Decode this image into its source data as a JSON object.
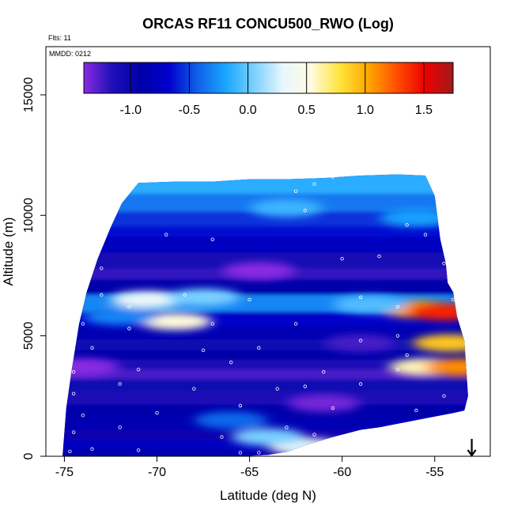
{
  "chart_data": {
    "type": "heatmap",
    "title": "ORCAS RF11 CONCU500_RWO (Log)",
    "notes": {
      "flights": "Flts: 11",
      "date": "MMDD: 0212"
    },
    "xlabel": "Latitude (deg N)",
    "ylabel": "Altitude (m)",
    "xlim": [
      -76,
      -52
    ],
    "ylim": [
      0,
      17000
    ],
    "x_ticks": [
      -75,
      -70,
      -65,
      -60,
      -55
    ],
    "x_tick_labels": [
      "-75",
      "-70",
      "-65",
      "-60",
      "-55"
    ],
    "y_ticks": [
      0,
      5000,
      10000,
      15000
    ],
    "y_tick_labels": [
      "0",
      "5000",
      "10000",
      "15000"
    ],
    "colorbar": {
      "range": [
        -1.4,
        1.75
      ],
      "ticks": [
        -1.0,
        -0.5,
        0.0,
        0.5,
        1.0,
        1.5
      ],
      "tick_labels": [
        "-1.0",
        "-0.5",
        "0.0",
        "0.5",
        "1.0",
        "1.5"
      ],
      "palette": [
        "#8a2be2",
        "#1e10b8",
        "#0000a8",
        "#0000cd",
        "#1060e8",
        "#19a6ff",
        "#7cd0ff",
        "#e8f6ff",
        "#fffbe0",
        "#ffe43c",
        "#ffa800",
        "#ff5000",
        "#ee0000",
        "#a01a1a"
      ]
    },
    "domain_outline": {
      "lat": [
        -75.1,
        -74.9,
        -74.6,
        -74.2,
        -73.8,
        -73.2,
        -72.5,
        -71.9,
        -71.0,
        -69.0,
        -67.0,
        -65.0,
        -63.0,
        -61.0,
        -59.0,
        -57.0,
        -55.5,
        -55.0,
        -54.7,
        -54.4,
        -54.3,
        -54.0,
        -53.8,
        -53.4,
        -53.2,
        -53.4,
        -54.0,
        -56.0,
        -58.0,
        -59.0,
        -60.5,
        -62.0,
        -63.0,
        -64.0,
        -65.5,
        -67.0,
        -69.0,
        -71.0,
        -73.0,
        -74.5
      ],
      "alt": [
        0,
        2000,
        3600,
        5500,
        6800,
        8200,
        9500,
        10500,
        11350,
        11400,
        11400,
        11500,
        11500,
        11550,
        11650,
        11700,
        11650,
        10800,
        9000,
        8000,
        7200,
        6800,
        5800,
        4800,
        2500,
        1900,
        1800,
        1500,
        1200,
        1100,
        800,
        450,
        180,
        60,
        0,
        0,
        0,
        0,
        0,
        0
      ]
    },
    "layers": [
      {
        "alt": 11300,
        "value": -0.15
      },
      {
        "alt": 10500,
        "value": -0.35
      },
      {
        "alt": 9800,
        "value": -0.55
      },
      {
        "alt": 9300,
        "value": -0.65
      },
      {
        "alt": 8900,
        "value": -0.75
      },
      {
        "alt": 8000,
        "value": -1.1
      },
      {
        "alt": 7600,
        "value": -1.2
      },
      {
        "alt": 7100,
        "value": -0.95
      },
      {
        "alt": 6300,
        "value": -0.3
      },
      {
        "alt": 5700,
        "value": -0.7
      },
      {
        "alt": 5100,
        "value": -0.85
      },
      {
        "alt": 4600,
        "value": -1.05
      },
      {
        "alt": 4200,
        "value": -0.95
      },
      {
        "alt": 3800,
        "value": -1.15
      },
      {
        "alt": 3400,
        "value": -1.25
      },
      {
        "alt": 3000,
        "value": -1.05
      },
      {
        "alt": 2400,
        "value": -1.15
      },
      {
        "alt": 1900,
        "value": -0.9
      },
      {
        "alt": 1300,
        "value": -0.85
      },
      {
        "alt": 900,
        "value": -1.0
      },
      {
        "alt": 400,
        "value": -0.75
      },
      {
        "alt": 100,
        "value": -0.95
      }
    ],
    "features": [
      {
        "lat": -70.5,
        "alt": 6500,
        "value": 0.35
      },
      {
        "lat": -69.0,
        "alt": 5600,
        "value": 0.55
      },
      {
        "lat": -67.5,
        "alt": 6600,
        "value": 0.05
      },
      {
        "lat": -56.0,
        "alt": 6100,
        "value": 1.05
      },
      {
        "lat": -54.5,
        "alt": 6000,
        "value": 1.4
      },
      {
        "lat": -58.5,
        "alt": 6300,
        "value": -0.05
      },
      {
        "lat": -54.2,
        "alt": 4700,
        "value": 0.9
      },
      {
        "lat": -55.5,
        "alt": 3700,
        "value": 0.6
      },
      {
        "lat": -53.6,
        "alt": 3700,
        "value": 1.1
      },
      {
        "lat": -74.0,
        "alt": 3700,
        "value": -1.4
      },
      {
        "lat": -61.0,
        "alt": 2200,
        "value": -1.35
      },
      {
        "lat": -64.5,
        "alt": 7700,
        "value": -1.4
      },
      {
        "lat": -62.0,
        "alt": 400,
        "value": 0.45
      },
      {
        "lat": -61.0,
        "alt": 200,
        "value": 0.25
      },
      {
        "lat": -64.0,
        "alt": 800,
        "value": 0.05
      },
      {
        "lat": -66.0,
        "alt": 1500,
        "value": -0.4
      },
      {
        "lat": -72.0,
        "alt": 5800,
        "value": -0.3
      },
      {
        "lat": -63.0,
        "alt": 10300,
        "value": -0.1
      },
      {
        "lat": -56.0,
        "alt": 9900,
        "value": -0.2
      },
      {
        "lat": -59.0,
        "alt": 4700,
        "value": -1.25
      }
    ],
    "sample_points": [
      {
        "lat": -72.0,
        "alt": 11950
      },
      {
        "lat": -71.0,
        "alt": 11950
      },
      {
        "lat": -70.0,
        "alt": 11950
      },
      {
        "lat": -69.0,
        "alt": 11950
      },
      {
        "lat": -68.0,
        "alt": 11950
      },
      {
        "lat": -63.0,
        "alt": 11950
      },
      {
        "lat": -62.0,
        "alt": 11950
      },
      {
        "lat": -61.0,
        "alt": 11900
      },
      {
        "lat": -59.0,
        "alt": 11950
      },
      {
        "lat": -58.5,
        "alt": 11950
      },
      {
        "lat": -58.0,
        "alt": 11900
      },
      {
        "lat": -57.5,
        "alt": 11950
      },
      {
        "lat": -57.0,
        "alt": 11950
      },
      {
        "lat": -56.5,
        "alt": 11950
      },
      {
        "lat": -56.0,
        "alt": 11950
      },
      {
        "lat": -55.5,
        "alt": 11950
      },
      {
        "lat": -55.0,
        "alt": 11950
      },
      {
        "lat": -60.5,
        "alt": 11600
      },
      {
        "lat": -61.5,
        "alt": 11300
      },
      {
        "lat": -62.5,
        "alt": 11000
      },
      {
        "lat": -62.0,
        "alt": 10200
      },
      {
        "lat": -56.5,
        "alt": 9600
      },
      {
        "lat": -55.5,
        "alt": 9200
      },
      {
        "lat": -67.0,
        "alt": 9000
      },
      {
        "lat": -69.5,
        "alt": 9200
      },
      {
        "lat": -73.5,
        "alt": 9200
      },
      {
        "lat": -74.0,
        "alt": 8100
      },
      {
        "lat": -73.0,
        "alt": 7800
      },
      {
        "lat": -60.0,
        "alt": 8200
      },
      {
        "lat": -58.0,
        "alt": 8300
      },
      {
        "lat": -54.5,
        "alt": 8000
      },
      {
        "lat": -73.0,
        "alt": 6700
      },
      {
        "lat": -71.5,
        "alt": 6200
      },
      {
        "lat": -68.5,
        "alt": 6700
      },
      {
        "lat": -65.0,
        "alt": 6500
      },
      {
        "lat": -59.0,
        "alt": 6600
      },
      {
        "lat": -57.0,
        "alt": 6200
      },
      {
        "lat": -54.0,
        "alt": 6500
      },
      {
        "lat": -74.0,
        "alt": 5500
      },
      {
        "lat": -71.5,
        "alt": 5300
      },
      {
        "lat": -67.0,
        "alt": 5500
      },
      {
        "lat": -62.5,
        "alt": 5500
      },
      {
        "lat": -57.0,
        "alt": 5000
      },
      {
        "lat": -73.5,
        "alt": 4500
      },
      {
        "lat": -67.5,
        "alt": 4400
      },
      {
        "lat": -64.5,
        "alt": 4500
      },
      {
        "lat": -59.0,
        "alt": 4800
      },
      {
        "lat": -56.5,
        "alt": 4200
      },
      {
        "lat": -74.5,
        "alt": 3500
      },
      {
        "lat": -71.0,
        "alt": 3600
      },
      {
        "lat": -66.0,
        "alt": 3900
      },
      {
        "lat": -61.0,
        "alt": 3500
      },
      {
        "lat": -57.0,
        "alt": 3600
      },
      {
        "lat": -74.5,
        "alt": 2600
      },
      {
        "lat": -72.0,
        "alt": 3000
      },
      {
        "lat": -68.0,
        "alt": 2800
      },
      {
        "lat": -63.5,
        "alt": 2800
      },
      {
        "lat": -62.0,
        "alt": 2900
      },
      {
        "lat": -59.0,
        "alt": 3000
      },
      {
        "lat": -54.5,
        "alt": 2500
      },
      {
        "lat": -74.0,
        "alt": 1700
      },
      {
        "lat": -70.0,
        "alt": 1800
      },
      {
        "lat": -65.5,
        "alt": 2100
      },
      {
        "lat": -60.5,
        "alt": 2000
      },
      {
        "lat": -56.0,
        "alt": 1900
      },
      {
        "lat": -74.5,
        "alt": 1000
      },
      {
        "lat": -72.0,
        "alt": 1200
      },
      {
        "lat": -66.5,
        "alt": 800
      },
      {
        "lat": -63.0,
        "alt": 1200
      },
      {
        "lat": -61.5,
        "alt": 900
      },
      {
        "lat": -74.7,
        "alt": 200
      },
      {
        "lat": -73.5,
        "alt": 300
      },
      {
        "lat": -71.0,
        "alt": 250
      },
      {
        "lat": -65.5,
        "alt": 150
      },
      {
        "lat": -64.5,
        "alt": 150
      },
      {
        "lat": -62.5,
        "alt": 200
      },
      {
        "lat": -60.5,
        "alt": 200
      }
    ],
    "arrow_marker": {
      "lat": -53.0,
      "alt": 0,
      "direction": "down"
    }
  }
}
